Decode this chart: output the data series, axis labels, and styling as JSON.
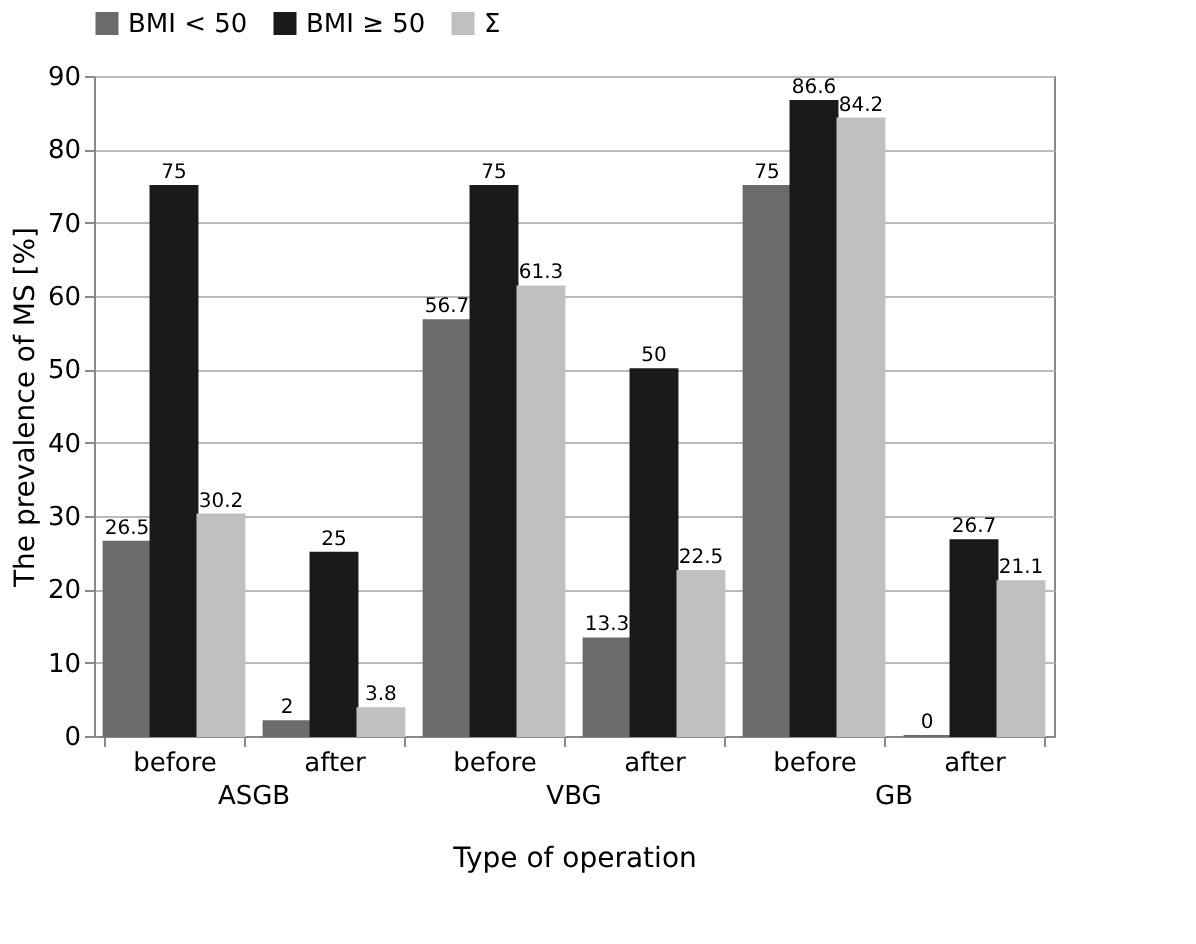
{
  "chart_data": {
    "type": "bar",
    "xlabel": "Type of operation",
    "ylabel": "The prevalence of MS [%]",
    "categories": [
      "before",
      "after",
      "before",
      "after",
      "before",
      "after"
    ],
    "series": [
      {
        "name": "BMI < 50",
        "color": "#6b6b6b",
        "values": [
          26.5,
          2,
          56.7,
          13.3,
          75,
          0
        ]
      },
      {
        "name": "BMI ≥ 50",
        "color": "#1a1a1a",
        "values": [
          75,
          25,
          75,
          50,
          86.6,
          26.7
        ]
      },
      {
        "name": "Σ",
        "color": "#c0c0c0",
        "values": [
          30.2,
          3.8,
          61.3,
          22.5,
          84.2,
          21.1
        ]
      }
    ],
    "annotations": [
      "ASGB",
      "VBG",
      "GB"
    ],
    "ylim": [
      0,
      90
    ],
    "yticks": [
      0,
      10,
      20,
      30,
      40,
      50,
      60,
      70,
      80,
      90
    ],
    "grid": "y",
    "legend": "top",
    "data_labels": true
  }
}
